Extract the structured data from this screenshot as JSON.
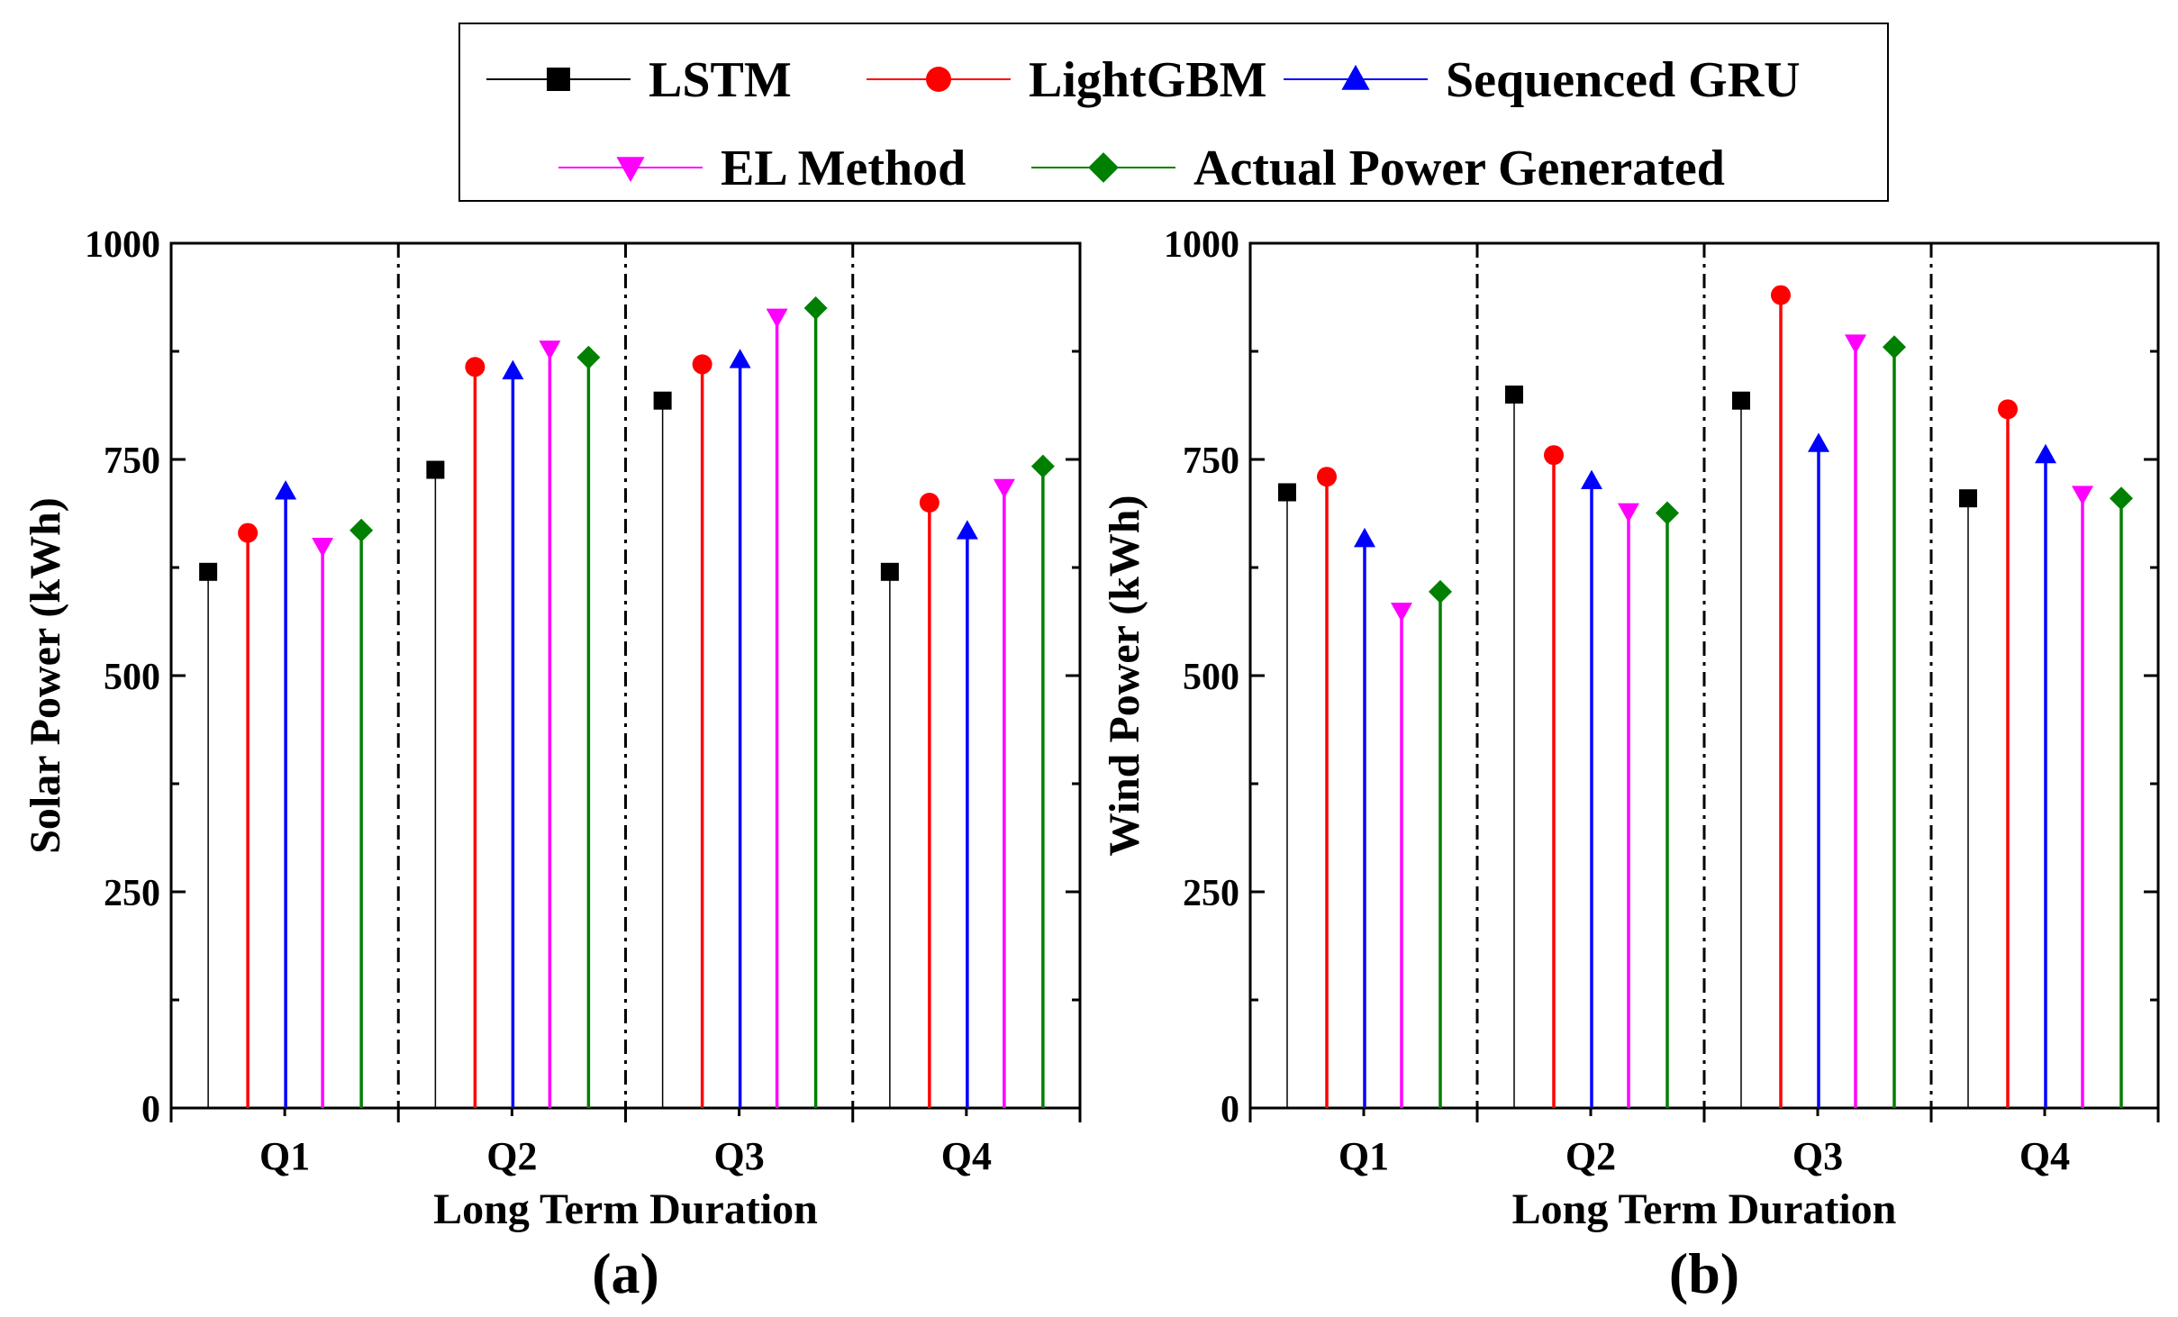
{
  "legend": [
    {
      "name": "LSTM",
      "color": "#000000",
      "marker": "square"
    },
    {
      "name": "LightGBM",
      "color": "#ff0000",
      "marker": "circle"
    },
    {
      "name": "Sequenced GRU",
      "color": "#0000ff",
      "marker": "triangle-up"
    },
    {
      "name": "EL Method",
      "color": "#ff00ff",
      "marker": "triangle-down"
    },
    {
      "name": "Actual Power Generated",
      "color": "#008000",
      "marker": "diamond"
    }
  ],
  "chart_data": [
    {
      "type": "stem",
      "panel_label": "(a)",
      "xlabel": "Long Term Duration",
      "ylabel": "Solar Power (kWh)",
      "ylim": [
        0,
        1000
      ],
      "yticks": [
        "0",
        "250",
        "500",
        "750",
        "1000"
      ],
      "categories": [
        "Q1",
        "Q2",
        "Q3",
        "Q4"
      ],
      "series": [
        {
          "name": "LSTM",
          "values": [
            620,
            738,
            818,
            620
          ]
        },
        {
          "name": "LightGBM",
          "values": [
            665,
            857,
            860,
            700
          ]
        },
        {
          "name": "Sequenced GRU",
          "values": [
            713,
            852,
            865,
            667
          ]
        },
        {
          "name": "EL Method",
          "values": [
            650,
            878,
            915,
            718
          ]
        },
        {
          "name": "Actual Power Generated",
          "values": [
            668,
            868,
            925,
            742
          ]
        }
      ]
    },
    {
      "type": "stem",
      "panel_label": "(b)",
      "xlabel": "Long Term Duration",
      "ylabel": "Wind Power (kWh)",
      "ylim": [
        0,
        1000
      ],
      "yticks": [
        "0",
        "250",
        "500",
        "750",
        "1000"
      ],
      "categories": [
        "Q1",
        "Q2",
        "Q3",
        "Q4"
      ],
      "series": [
        {
          "name": "LSTM",
          "values": [
            712,
            825,
            818,
            705
          ]
        },
        {
          "name": "LightGBM",
          "values": [
            730,
            755,
            940,
            808
          ]
        },
        {
          "name": "Sequenced GRU",
          "values": [
            658,
            725,
            768,
            755
          ]
        },
        {
          "name": "EL Method",
          "values": [
            575,
            690,
            885,
            710
          ]
        },
        {
          "name": "Actual Power Generated",
          "values": [
            597,
            688,
            880,
            705
          ]
        }
      ]
    }
  ]
}
